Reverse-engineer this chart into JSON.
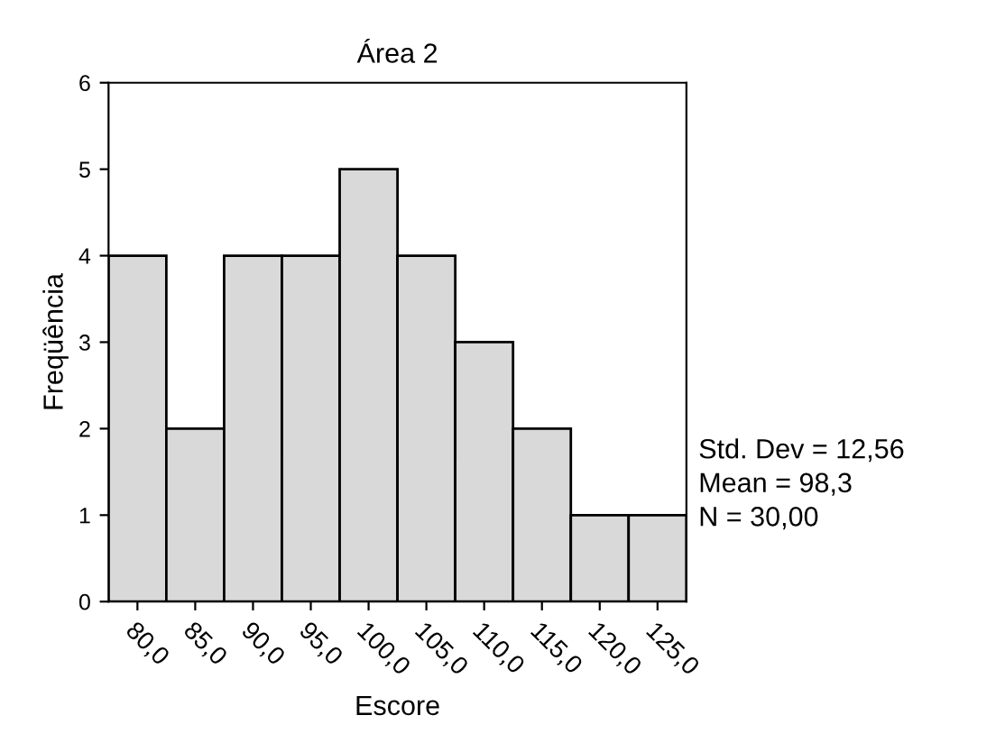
{
  "chart_data": {
    "type": "histogram",
    "title": "Área 2",
    "xlabel": "Escore",
    "ylabel": "Freqüência",
    "bins": [
      77.5,
      82.5,
      87.5,
      92.5,
      97.5,
      102.5,
      107.5,
      112.5,
      117.5,
      122.5,
      127.5
    ],
    "values": [
      4,
      2,
      4,
      4,
      5,
      4,
      3,
      2,
      1,
      1
    ],
    "color": "#d9d9d9",
    "xlim": [
      77.5,
      127.5
    ],
    "xticks": [
      {
        "value": 80,
        "label": "80,0"
      },
      {
        "value": 85,
        "label": "85,0"
      },
      {
        "value": 90,
        "label": "90,0"
      },
      {
        "value": 95,
        "label": "95,0"
      },
      {
        "value": 100,
        "label": "100,0"
      },
      {
        "value": 105,
        "label": "105,0"
      },
      {
        "value": 110,
        "label": "110,0"
      },
      {
        "value": 115,
        "label": "115,0"
      },
      {
        "value": 120,
        "label": "120,0"
      },
      {
        "value": 125,
        "label": "125,0"
      }
    ],
    "ylim": [
      0,
      6
    ],
    "yticks": [
      0,
      1,
      2,
      3,
      4,
      5,
      6
    ],
    "annotations": [
      "Std. Dev = 12,56",
      "Mean = 98,3",
      "N = 30,00"
    ],
    "grid": false,
    "legend": false
  }
}
